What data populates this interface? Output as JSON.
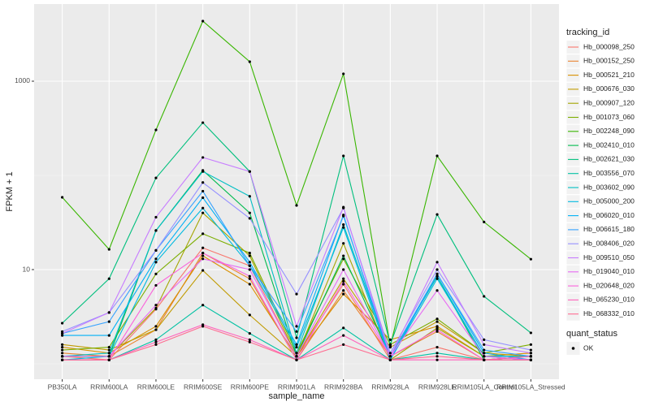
{
  "chart_data": {
    "type": "line",
    "log_y": true,
    "grid": true,
    "x_label": "sample_name",
    "y_label": "FPKM + 1",
    "categories": [
      "PB350LA",
      "RRIM600LA",
      "RRIM600LE",
      "RRIM600SE",
      "RRIM600PE",
      "RRIM901LA",
      "RRIM928BA",
      "RRIM928LA",
      "RRIM928LE",
      "RRIM105LA_Control",
      "RRIM105LA_Stressed"
    ],
    "ylim": [
      0.686,
      6590
    ],
    "yticks": [
      10,
      1000
    ],
    "yminor": [
      1,
      100
    ],
    "legend_title": "tracking_id",
    "point_legend": {
      "title": "quant_status",
      "label": "OK",
      "color": "#000000"
    },
    "series": [
      {
        "name": "Hb_000098_250",
        "color": "#F8766D",
        "values": [
          1.2,
          1.1,
          3.8,
          17,
          11,
          1.2,
          7,
          1.1,
          1.5,
          1.1,
          1.1
        ]
      },
      {
        "name": "Hb_000152_250",
        "color": "#EA8331",
        "values": [
          1.3,
          1.2,
          2.3,
          15,
          8,
          1.1,
          6,
          1.2,
          2.2,
          1.1,
          1.2
        ]
      },
      {
        "name": "Hb_000521_210",
        "color": "#D89000",
        "values": [
          1.5,
          1.3,
          2.5,
          14,
          7,
          1.2,
          5.5,
          1.8,
          2.5,
          1.2,
          1.3
        ]
      },
      {
        "name": "Hb_000676_030",
        "color": "#C09B00",
        "values": [
          1.6,
          1.4,
          2.3,
          9.8,
          3.3,
          1.2,
          8,
          1.5,
          2.8,
          1.3,
          1.2
        ]
      },
      {
        "name": "Hb_000907_120",
        "color": "#A3A500",
        "values": [
          1.2,
          1.2,
          3.9,
          40,
          14,
          1.2,
          19,
          1.1,
          2.4,
          1.2,
          1.2
        ]
      },
      {
        "name": "Hb_001073_060",
        "color": "#7CAE00",
        "values": [
          1.4,
          1.5,
          9,
          24,
          15,
          1.3,
          13,
          1.6,
          3,
          1.3,
          1.6
        ]
      },
      {
        "name": "Hb_002248_090",
        "color": "#39B600",
        "values": [
          58.5,
          16.4,
          304,
          4345,
          1611,
          48,
          1197,
          1.55,
          161,
          32,
          12.9
        ]
      },
      {
        "name": "Hb_002410_010",
        "color": "#00BB4E",
        "values": [
          1.2,
          1.2,
          26,
          113,
          40,
          1.2,
          14,
          1.2,
          8.5,
          1.1,
          1.2
        ]
      },
      {
        "name": "Hb_002621_030",
        "color": "#00BF7D",
        "values": [
          2.7,
          8,
          94,
          363,
          110,
          1.89,
          161,
          1.6,
          38.5,
          5.2,
          2.13
        ]
      },
      {
        "name": "Hb_003556_070",
        "color": "#00C1A3",
        "values": [
          1.1,
          1.1,
          1.8,
          4.2,
          2.1,
          1.1,
          2.4,
          1.1,
          1.3,
          1.1,
          1.1
        ]
      },
      {
        "name": "Hb_003602_090",
        "color": "#00BFC4",
        "values": [
          1.2,
          1.3,
          26,
          110,
          60,
          1.3,
          30,
          1.2,
          8.5,
          1.2,
          1.2
        ]
      },
      {
        "name": "Hb_005000_200",
        "color": "#00BAE0",
        "values": [
          1.1,
          1.2,
          12,
          45,
          11,
          1.5,
          28,
          1.1,
          8,
          1.2,
          1.1
        ]
      },
      {
        "name": "Hb_006020_010",
        "color": "#00B0F6",
        "values": [
          2.0,
          2.0,
          13,
          58,
          12,
          1.6,
          38,
          1.1,
          9,
          1.3,
          1.1
        ]
      },
      {
        "name": "Hb_006615_180",
        "color": "#35A2FF",
        "values": [
          2.1,
          2.8,
          16,
          68,
          11,
          2.2,
          37,
          1.2,
          9,
          1.4,
          1.2
        ]
      },
      {
        "name": "Hb_008406_020",
        "color": "#9590FF",
        "values": [
          2.2,
          3.5,
          16,
          84,
          35,
          5.5,
          45,
          1.3,
          10,
          1.8,
          1.4
        ]
      },
      {
        "name": "Hb_009510_050",
        "color": "#C77CFF",
        "values": [
          2.1,
          3.5,
          36,
          155,
          110,
          2.5,
          46,
          1.2,
          12,
          1.6,
          1.3
        ]
      },
      {
        "name": "Hb_019040_010",
        "color": "#E76BF3",
        "values": [
          1.2,
          1.2,
          4.2,
          13,
          10,
          1.2,
          10,
          1.2,
          6,
          1.2,
          1.1
        ]
      },
      {
        "name": "Hb_020648_020",
        "color": "#FA62DB",
        "values": [
          1.1,
          1.1,
          6.8,
          15,
          8.5,
          1.1,
          7.5,
          1.2,
          2.3,
          1.1,
          1.1
        ]
      },
      {
        "name": "Hb_065230_010",
        "color": "#FF62BC",
        "values": [
          1.1,
          1.1,
          1.7,
          2.6,
          1.8,
          1.1,
          2,
          1.1,
          1.1,
          1.1,
          1.2
        ]
      },
      {
        "name": "Hb_068332_010",
        "color": "#FF6C91",
        "values": [
          1.1,
          1.1,
          1.6,
          2.5,
          1.7,
          1.1,
          1.6,
          1.1,
          1.2,
          1.1,
          1.1
        ]
      }
    ]
  }
}
